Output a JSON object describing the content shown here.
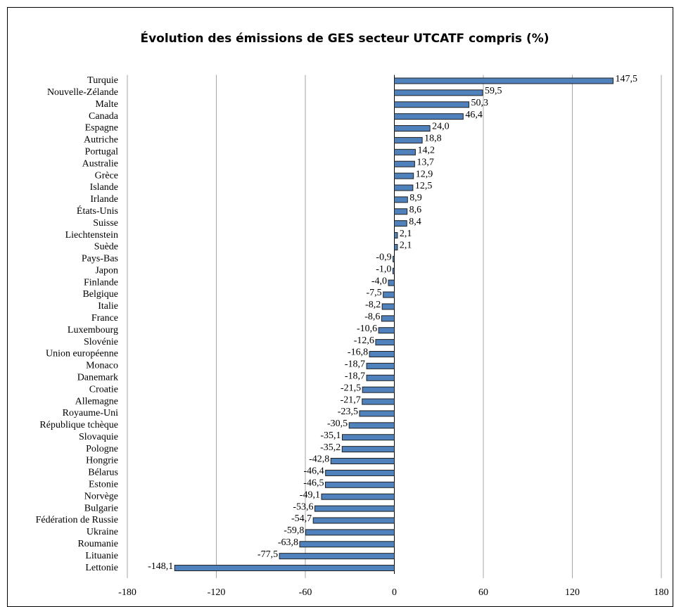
{
  "chart_data": {
    "type": "bar",
    "orientation": "horizontal",
    "title": "Évolution des émissions de GES secteur UTCATF compris (%)",
    "categories": [
      "Turquie",
      "Nouvelle-Zélande",
      "Malte",
      "Canada",
      "Espagne",
      "Autriche",
      "Portugal",
      "Australie",
      "Grèce",
      "Islande",
      "Irlande",
      "États-Unis",
      "Suisse",
      "Liechtenstein",
      "Suède",
      "Pays-Bas",
      "Japon",
      "Finlande",
      "Belgique",
      "Italie",
      "France",
      "Luxembourg",
      "Slovénie",
      "Union européenne",
      "Monaco",
      "Danemark",
      "Croatie",
      "Allemagne",
      "Royaume-Uni",
      "République tchèque",
      "Slovaquie",
      "Pologne",
      "Hongrie",
      "Bélarus",
      "Estonie",
      "Norvège",
      "Bulgarie",
      "Fédération de Russie",
      "Ukraine",
      "Roumanie",
      "Lituanie",
      "Lettonie"
    ],
    "values": [
      147.5,
      59.5,
      50.3,
      46.4,
      24.0,
      18.8,
      14.2,
      13.7,
      12.9,
      12.5,
      8.9,
      8.6,
      8.4,
      2.1,
      2.1,
      -0.9,
      -1.0,
      -4.0,
      -7.5,
      -8.2,
      -8.6,
      -10.6,
      -12.6,
      -16.8,
      -18.7,
      -18.7,
      -21.5,
      -21.7,
      -23.5,
      -30.5,
      -35.1,
      -35.2,
      -42.8,
      -46.4,
      -46.5,
      -49.1,
      -53.6,
      -54.7,
      -59.8,
      -63.8,
      -77.5,
      -148.1
    ],
    "value_labels": [
      "147,5",
      "59,5",
      "50,3",
      "46,4",
      "24,0",
      "18,8",
      "14,2",
      "13,7",
      "12,9",
      "12,5",
      "8,9",
      "8,6",
      "8,4",
      "2,1",
      "2,1",
      "-0,9",
      "-1,0",
      "-4,0",
      "-7,5",
      "-8,2",
      "-8,6",
      "-10,6",
      "-12,6",
      "-16,8",
      "-18,7",
      "-18,7",
      "-21,5",
      "-21,7",
      "-23,5",
      "-30,5",
      "-35,1",
      "-35,2",
      "-42,8",
      "-46,4",
      "-46,5",
      "-49,1",
      "-53,6",
      "-54,7",
      "-59,8",
      "-63,8",
      "-77,5",
      "-148,1"
    ],
    "color": "#4f81bd",
    "xlim": [
      -180,
      180
    ],
    "xticks": [
      -180,
      -120,
      -60,
      0,
      60,
      120,
      180
    ],
    "grid": true
  }
}
